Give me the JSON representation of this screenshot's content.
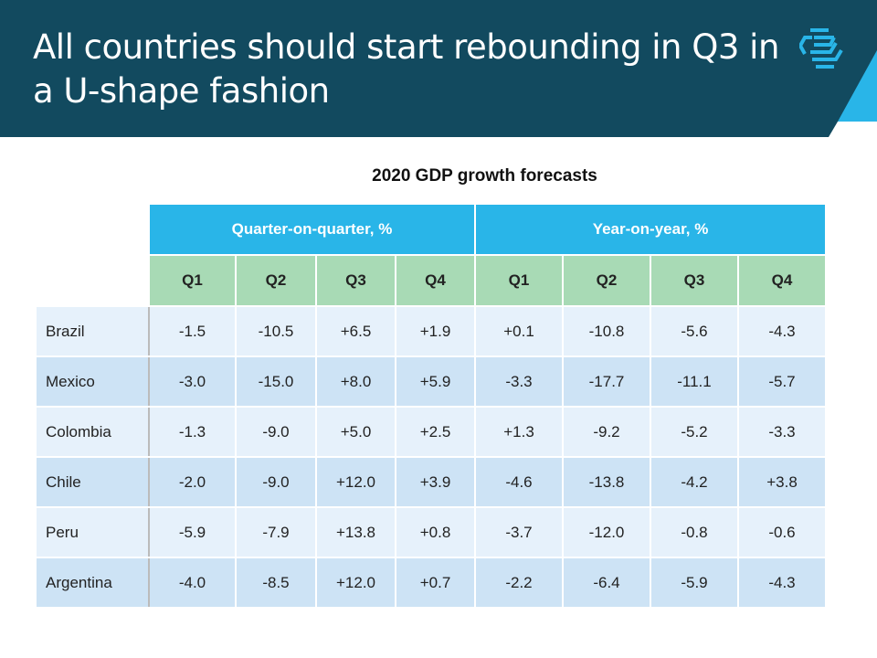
{
  "slide": {
    "title": "All countries should start rebounding in Q3 in a U-shape fashion",
    "logo_icon": "stacked-chevron-logo-icon",
    "colors": {
      "header": "#124a5f",
      "accent": "#29b5e8",
      "quarter_header": "#a8dab5",
      "row_light": "#e6f1fb",
      "row_dark": "#cde3f5"
    }
  },
  "table": {
    "title": "2020 GDP growth forecasts",
    "groups": [
      "Quarter-on-quarter, %",
      "Year-on-year, %"
    ],
    "quarters": [
      "Q1",
      "Q2",
      "Q3",
      "Q4",
      "Q1",
      "Q2",
      "Q3",
      "Q4"
    ],
    "rows": [
      {
        "country": "Brazil",
        "values": [
          "-1.5",
          "-10.5",
          "+6.5",
          "+1.9",
          "+0.1",
          "-10.8",
          "-5.6",
          "-4.3"
        ]
      },
      {
        "country": "Mexico",
        "values": [
          "-3.0",
          "-15.0",
          "+8.0",
          "+5.9",
          "-3.3",
          "-17.7",
          "-11.1",
          "-5.7"
        ]
      },
      {
        "country": "Colombia",
        "values": [
          "-1.3",
          "-9.0",
          "+5.0",
          "+2.5",
          "+1.3",
          "-9.2",
          "-5.2",
          "-3.3"
        ]
      },
      {
        "country": "Chile",
        "values": [
          "-2.0",
          "-9.0",
          "+12.0",
          "+3.9",
          "-4.6",
          "-13.8",
          "-4.2",
          "+3.8"
        ]
      },
      {
        "country": "Peru",
        "values": [
          "-5.9",
          "-7.9",
          "+13.8",
          "+0.8",
          "-3.7",
          "-12.0",
          "-0.8",
          "-0.6"
        ]
      },
      {
        "country": "Argentina",
        "values": [
          "-4.0",
          "-8.5",
          "+12.0",
          "+0.7",
          "-2.2",
          "-6.4",
          "-5.9",
          "-4.3"
        ]
      }
    ]
  }
}
